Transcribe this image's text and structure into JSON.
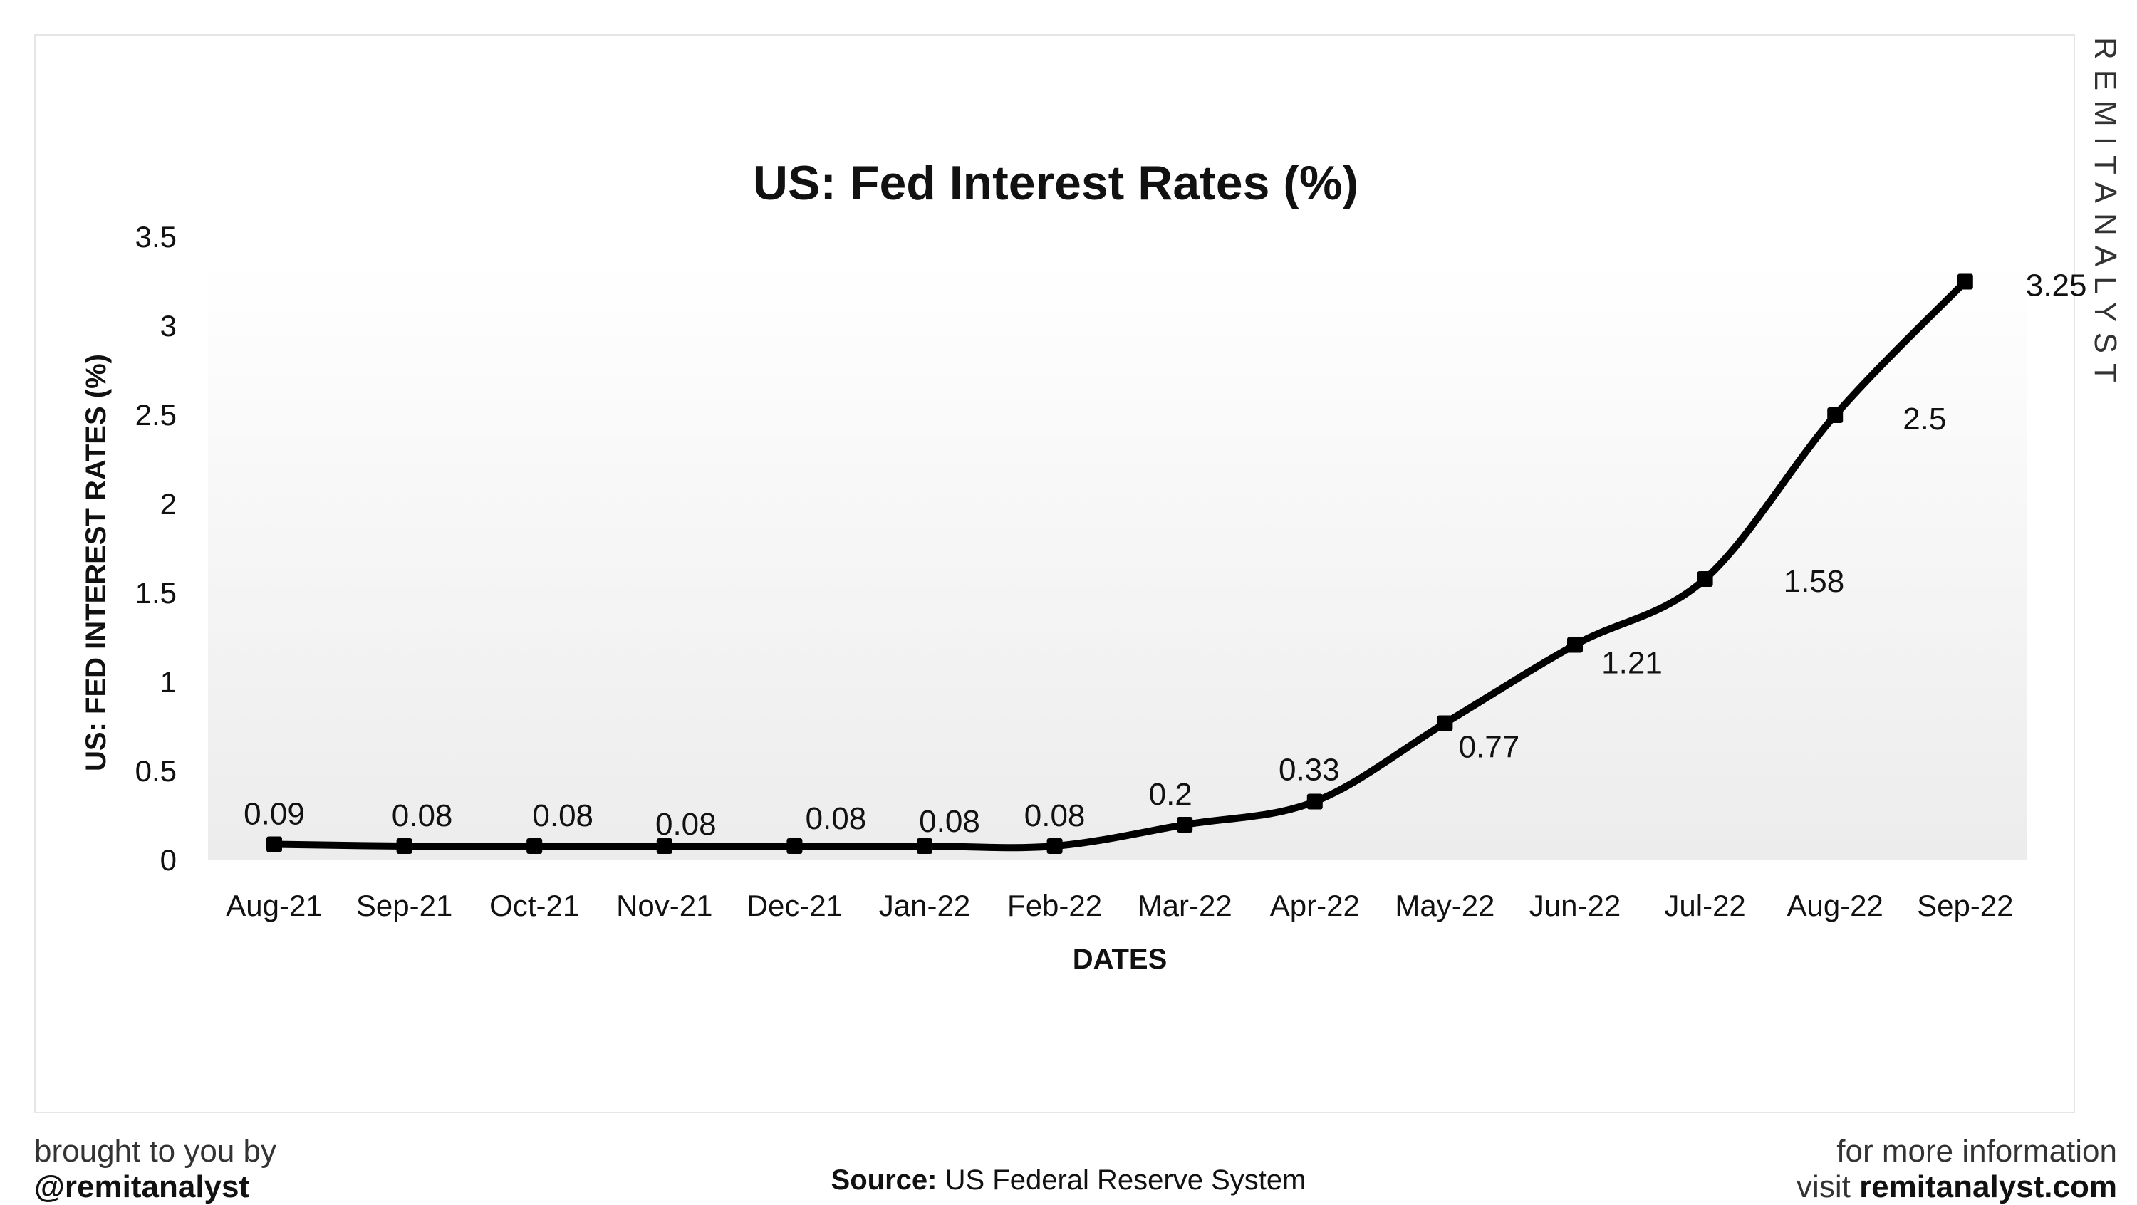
{
  "chart_data": {
    "type": "line",
    "title": "US: Fed Interest Rates (%)",
    "xlabel": "DATES",
    "ylabel": "US: FED INTEREST RATES (%)",
    "categories": [
      "Aug-21",
      "Sep-21",
      "Oct-21",
      "Nov-21",
      "Dec-21",
      "Jan-22",
      "Feb-22",
      "Mar-22",
      "Apr-22",
      "May-22",
      "Jun-22",
      "Jul-22",
      "Aug-22",
      "Sep-22"
    ],
    "values": [
      0.09,
      0.08,
      0.08,
      0.08,
      0.08,
      0.08,
      0.08,
      0.2,
      0.33,
      0.77,
      1.21,
      1.58,
      2.5,
      3.25
    ],
    "data_labels": [
      "0.09",
      "0.08",
      "0.08",
      "0.08",
      "0.08",
      "0.08",
      "0.08",
      "0.2",
      "0.33",
      "0.77",
      "1.21",
      "1.58",
      "2.5",
      "3.25"
    ],
    "yticks": [
      "0",
      "0.5",
      "1",
      "1.5",
      "2",
      "2.5",
      "3",
      "3.5"
    ],
    "ylim": [
      0,
      3.5
    ],
    "grid": false,
    "line_color": "#000000",
    "smooth": true
  },
  "branding": {
    "vertical_logo": "REMITANALYST",
    "brought_by": "brought to you by",
    "handle": "@remitanalyst",
    "more_info": "for more information",
    "visit": "visit",
    "site": "remitanalyst.com"
  },
  "source": {
    "label": "Source:",
    "text": "US Federal Reserve System"
  }
}
